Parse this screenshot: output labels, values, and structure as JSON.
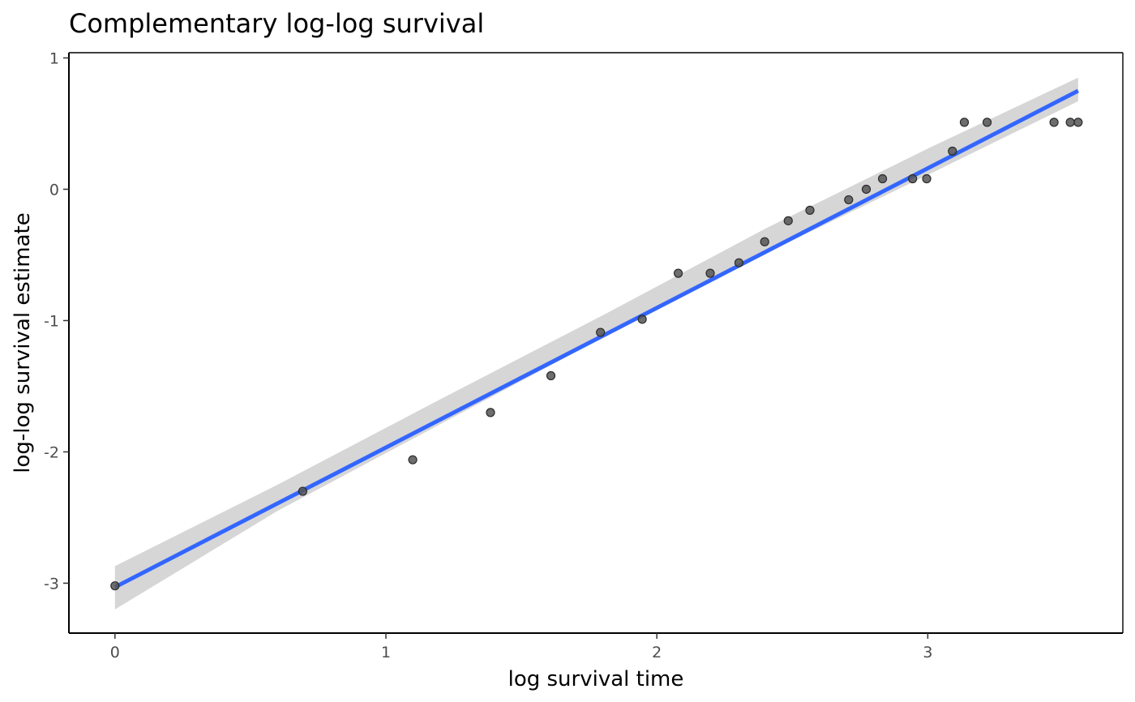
{
  "chart_data": {
    "type": "scatter",
    "title": "Complementary log-log survival",
    "xlabel": "log survival time",
    "ylabel": "log-log survival estimate",
    "xlim": [
      -0.17,
      3.72
    ],
    "ylim": [
      -3.38,
      1.04
    ],
    "x_ticks": [
      0,
      1,
      2,
      3
    ],
    "y_ticks": [
      -3,
      -2,
      -1,
      0,
      1
    ],
    "x_tick_labels": [
      "0",
      "1",
      "2",
      "3"
    ],
    "y_tick_labels": [
      "-3",
      "-2",
      "-1",
      "0",
      "1"
    ],
    "grid": false,
    "legend": "none",
    "points": [
      {
        "x": 0.0,
        "y": -3.02
      },
      {
        "x": 0.693,
        "y": -2.3
      },
      {
        "x": 1.099,
        "y": -2.06
      },
      {
        "x": 1.386,
        "y": -1.7
      },
      {
        "x": 1.609,
        "y": -1.42
      },
      {
        "x": 1.792,
        "y": -1.09
      },
      {
        "x": 1.946,
        "y": -0.99
      },
      {
        "x": 2.079,
        "y": -0.64
      },
      {
        "x": 2.197,
        "y": -0.64
      },
      {
        "x": 2.303,
        "y": -0.56
      },
      {
        "x": 2.398,
        "y": -0.4
      },
      {
        "x": 2.485,
        "y": -0.24
      },
      {
        "x": 2.565,
        "y": -0.16
      },
      {
        "x": 2.708,
        "y": -0.08
      },
      {
        "x": 2.773,
        "y": 0.0
      },
      {
        "x": 2.833,
        "y": 0.08
      },
      {
        "x": 2.944,
        "y": 0.08
      },
      {
        "x": 2.996,
        "y": 0.08
      },
      {
        "x": 3.091,
        "y": 0.29
      },
      {
        "x": 3.135,
        "y": 0.51
      },
      {
        "x": 3.219,
        "y": 0.51
      },
      {
        "x": 3.466,
        "y": 0.51
      },
      {
        "x": 3.526,
        "y": 0.51
      },
      {
        "x": 3.555,
        "y": 0.51
      }
    ],
    "fit_line": {
      "x": [
        0.0,
        3.555
      ],
      "y": [
        -3.03,
        0.75
      ]
    },
    "confidence_band": {
      "x": [
        0.0,
        0.6,
        1.2,
        1.8,
        2.4,
        3.0,
        3.555
      ],
      "lower": [
        -3.2,
        -2.45,
        -1.79,
        -1.13,
        -0.49,
        0.11,
        0.67
      ],
      "upper": [
        -2.87,
        -2.25,
        -1.6,
        -0.96,
        -0.3,
        0.31,
        0.85
      ]
    },
    "colors": {
      "fit_line": "#3366ff",
      "band": "#d6d6d6",
      "points_fill": "#555555",
      "points_stroke": "#2b2b2b",
      "axis": "#000000",
      "tick_text": "#4d4d4d"
    }
  }
}
